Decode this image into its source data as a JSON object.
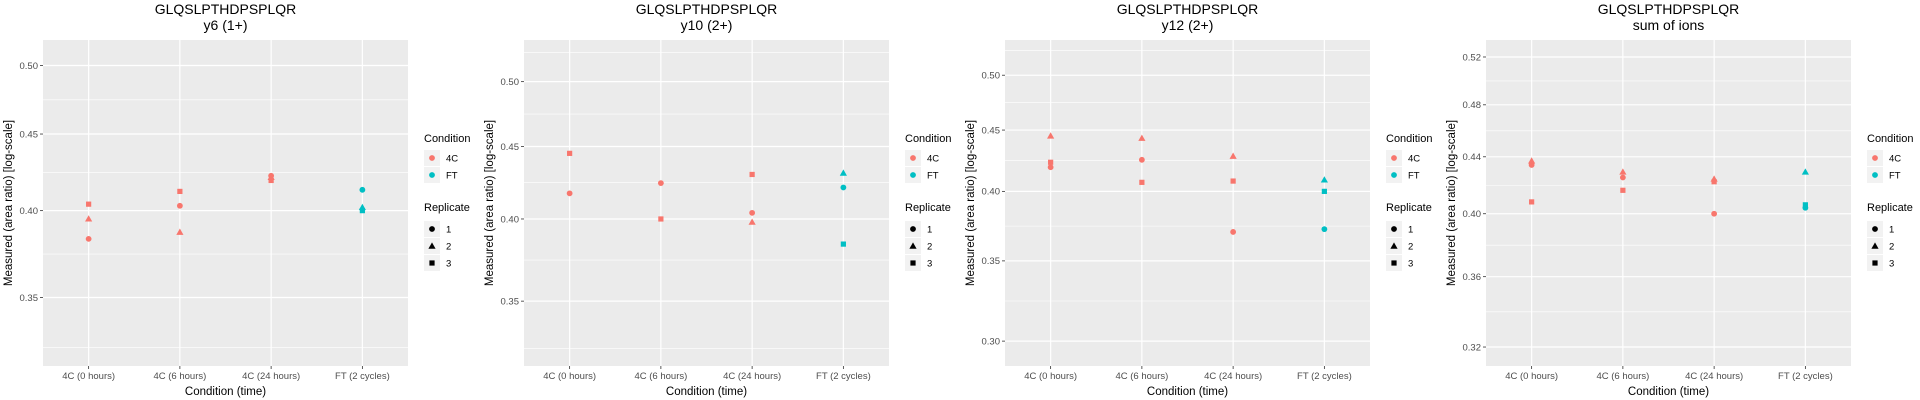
{
  "chart_data": [
    {
      "type": "scatter",
      "title": "GLQSLPTHDPSPLQR",
      "subtitle": "y6 (1+)",
      "xlabel": "Condition (time)",
      "ylabel": "Measured (area ratio) [log-scale]",
      "log_y": true,
      "ylim": [
        0.315,
        0.52
      ],
      "yticks": [
        0.35,
        0.4,
        0.45,
        0.5
      ],
      "ytick_labels": [
        "0.35",
        "0.40",
        "0.45",
        "0.50"
      ],
      "categories": [
        "4C (0 hours)",
        "4C (6 hours)",
        "4C (24 hours)",
        "FT (2 cycles)"
      ],
      "points": [
        {
          "x": "4C (0 hours)",
          "y": 0.383,
          "condition": "4C",
          "replicate": "1"
        },
        {
          "x": "4C (0 hours)",
          "y": 0.395,
          "condition": "4C",
          "replicate": "2"
        },
        {
          "x": "4C (0 hours)",
          "y": 0.404,
          "condition": "4C",
          "replicate": "3"
        },
        {
          "x": "4C (6 hours)",
          "y": 0.403,
          "condition": "4C",
          "replicate": "1"
        },
        {
          "x": "4C (6 hours)",
          "y": 0.387,
          "condition": "4C",
          "replicate": "2"
        },
        {
          "x": "4C (6 hours)",
          "y": 0.412,
          "condition": "4C",
          "replicate": "3"
        },
        {
          "x": "4C (24 hours)",
          "y": 0.422,
          "condition": "4C",
          "replicate": "1"
        },
        {
          "x": "4C (24 hours)",
          "y": 0.421,
          "condition": "4C",
          "replicate": "2"
        },
        {
          "x": "4C (24 hours)",
          "y": 0.419,
          "condition": "4C",
          "replicate": "3"
        },
        {
          "x": "FT (2 cycles)",
          "y": 0.413,
          "condition": "FT",
          "replicate": "1"
        },
        {
          "x": "FT (2 cycles)",
          "y": 0.402,
          "condition": "FT",
          "replicate": "2"
        },
        {
          "x": "FT (2 cycles)",
          "y": 0.4,
          "condition": "FT",
          "replicate": "3"
        }
      ]
    },
    {
      "type": "scatter",
      "title": "GLQSLPTHDPSPLQR",
      "subtitle": "y10 (2+)",
      "xlabel": "Condition (time)",
      "ylabel": "Measured (area ratio) [log-scale]",
      "log_y": true,
      "ylim": [
        0.315,
        0.535
      ],
      "yticks": [
        0.35,
        0.4,
        0.45,
        0.5
      ],
      "ytick_labels": [
        "0.35",
        "0.40",
        "0.45",
        "0.50"
      ],
      "categories": [
        "4C (0 hours)",
        "4C (6 hours)",
        "4C (24 hours)",
        "FT (2 cycles)"
      ],
      "points": [
        {
          "x": "4C (0 hours)",
          "y": 0.417,
          "condition": "4C",
          "replicate": "1"
        },
        {
          "x": "4C (0 hours)",
          "y": 0.445,
          "condition": "4C",
          "replicate": "3"
        },
        {
          "x": "4C (6 hours)",
          "y": 0.424,
          "condition": "4C",
          "replicate": "1"
        },
        {
          "x": "4C (6 hours)",
          "y": 0.4,
          "condition": "4C",
          "replicate": "3"
        },
        {
          "x": "4C (24 hours)",
          "y": 0.404,
          "condition": "4C",
          "replicate": "1"
        },
        {
          "x": "4C (24 hours)",
          "y": 0.398,
          "condition": "4C",
          "replicate": "2"
        },
        {
          "x": "4C (24 hours)",
          "y": 0.43,
          "condition": "4C",
          "replicate": "3"
        },
        {
          "x": "FT (2 cycles)",
          "y": 0.421,
          "condition": "FT",
          "replicate": "1"
        },
        {
          "x": "FT (2 cycles)",
          "y": 0.431,
          "condition": "FT",
          "replicate": "2"
        },
        {
          "x": "FT (2 cycles)",
          "y": 0.384,
          "condition": "FT",
          "replicate": "3"
        }
      ]
    },
    {
      "type": "scatter",
      "title": "GLQSLPTHDPSPLQR",
      "subtitle": "y12 (2+)",
      "xlabel": "Condition (time)",
      "ylabel": "Measured (area ratio) [log-scale]",
      "log_y": true,
      "ylim": [
        0.286,
        0.535
      ],
      "yticks": [
        0.3,
        0.35,
        0.4,
        0.45,
        0.5
      ],
      "ytick_labels": [
        "0.30",
        "0.35",
        "0.40",
        "0.45",
        "0.50"
      ],
      "categories": [
        "4C (0 hours)",
        "4C (6 hours)",
        "4C (24 hours)",
        "FT (2 cycles)"
      ],
      "points": [
        {
          "x": "4C (0 hours)",
          "y": 0.419,
          "condition": "4C",
          "replicate": "1"
        },
        {
          "x": "4C (0 hours)",
          "y": 0.445,
          "condition": "4C",
          "replicate": "2"
        },
        {
          "x": "4C (0 hours)",
          "y": 0.423,
          "condition": "4C",
          "replicate": "3"
        },
        {
          "x": "4C (6 hours)",
          "y": 0.425,
          "condition": "4C",
          "replicate": "1"
        },
        {
          "x": "4C (6 hours)",
          "y": 0.443,
          "condition": "4C",
          "replicate": "2"
        },
        {
          "x": "4C (6 hours)",
          "y": 0.407,
          "condition": "4C",
          "replicate": "3"
        },
        {
          "x": "4C (24 hours)",
          "y": 0.37,
          "condition": "4C",
          "replicate": "1"
        },
        {
          "x": "4C (24 hours)",
          "y": 0.428,
          "condition": "4C",
          "replicate": "2"
        },
        {
          "x": "4C (24 hours)",
          "y": 0.408,
          "condition": "4C",
          "replicate": "3"
        },
        {
          "x": "FT (2 cycles)",
          "y": 0.372,
          "condition": "FT",
          "replicate": "1"
        },
        {
          "x": "FT (2 cycles)",
          "y": 0.409,
          "condition": "FT",
          "replicate": "2"
        },
        {
          "x": "FT (2 cycles)",
          "y": 0.4,
          "condition": "FT",
          "replicate": "3"
        }
      ]
    },
    {
      "type": "scatter",
      "title": "GLQSLPTHDPSPLQR",
      "subtitle": "sum of ions",
      "xlabel": "Condition (time)",
      "ylabel": "Measured (area ratio) [log-scale]",
      "log_y": true,
      "ylim": [
        0.31,
        0.535
      ],
      "yticks": [
        0.32,
        0.36,
        0.4,
        0.44,
        0.48,
        0.52
      ],
      "ytick_labels": [
        "0.32",
        "0.36",
        "0.40",
        "0.44",
        "0.48",
        "0.52"
      ],
      "categories": [
        "4C (0 hours)",
        "4C (6 hours)",
        "4C (24 hours)",
        "FT (2 cycles)"
      ],
      "points": [
        {
          "x": "4C (0 hours)",
          "y": 0.434,
          "condition": "4C",
          "replicate": "1"
        },
        {
          "x": "4C (0 hours)",
          "y": 0.437,
          "condition": "4C",
          "replicate": "2"
        },
        {
          "x": "4C (0 hours)",
          "y": 0.408,
          "condition": "4C",
          "replicate": "3"
        },
        {
          "x": "4C (6 hours)",
          "y": 0.425,
          "condition": "4C",
          "replicate": "1"
        },
        {
          "x": "4C (6 hours)",
          "y": 0.429,
          "condition": "4C",
          "replicate": "2"
        },
        {
          "x": "4C (6 hours)",
          "y": 0.416,
          "condition": "4C",
          "replicate": "3"
        },
        {
          "x": "4C (24 hours)",
          "y": 0.4,
          "condition": "4C",
          "replicate": "1"
        },
        {
          "x": "4C (24 hours)",
          "y": 0.424,
          "condition": "4C",
          "replicate": "2"
        },
        {
          "x": "4C (24 hours)",
          "y": 0.422,
          "condition": "4C",
          "replicate": "3"
        },
        {
          "x": "FT (2 cycles)",
          "y": 0.404,
          "condition": "FT",
          "replicate": "1"
        },
        {
          "x": "FT (2 cycles)",
          "y": 0.429,
          "condition": "FT",
          "replicate": "2"
        },
        {
          "x": "FT (2 cycles)",
          "y": 0.406,
          "condition": "FT",
          "replicate": "3"
        }
      ]
    }
  ],
  "legend": {
    "placement": "right",
    "condition_title": "Condition",
    "conditions": [
      {
        "label": "4C",
        "color": "#F8766D"
      },
      {
        "label": "FT",
        "color": "#00BFC4"
      }
    ],
    "replicate_title": "Replicate",
    "replicates": [
      {
        "label": "1",
        "shape": "circle"
      },
      {
        "label": "2",
        "shape": "triangle"
      },
      {
        "label": "3",
        "shape": "square"
      }
    ]
  }
}
